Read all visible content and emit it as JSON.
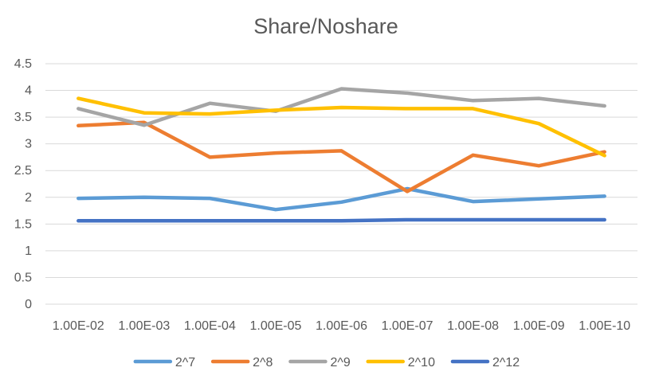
{
  "chart_data": {
    "type": "line",
    "title": "Share/Noshare",
    "xlabel": "",
    "ylabel": "",
    "categories": [
      "1.00E-02",
      "1.00E-03",
      "1.00E-04",
      "1.00E-05",
      "1.00E-06",
      "1.00E-07",
      "1.00E-08",
      "1.00E-09",
      "1.00E-10"
    ],
    "ylim": [
      0,
      4.5
    ],
    "yticks": [
      "0",
      "0.5",
      "1",
      "1.5",
      "2",
      "2.5",
      "3",
      "3.5",
      "4",
      "4.5"
    ],
    "grid": true,
    "legend_position": "bottom",
    "series": [
      {
        "name": "2^7",
        "color": "#5b9bd5",
        "values": [
          1.98,
          2.0,
          1.98,
          1.77,
          1.91,
          2.16,
          1.92,
          1.97,
          2.02
        ]
      },
      {
        "name": "2^8",
        "color": "#ed7d31",
        "values": [
          3.34,
          3.4,
          2.75,
          2.83,
          2.87,
          2.11,
          2.79,
          2.59,
          2.85
        ]
      },
      {
        "name": "2^9",
        "color": "#a5a5a5",
        "values": [
          3.66,
          3.35,
          3.76,
          3.61,
          4.03,
          3.95,
          3.81,
          3.85,
          3.71
        ]
      },
      {
        "name": "2^10",
        "color": "#ffc000",
        "values": [
          3.85,
          3.58,
          3.56,
          3.63,
          3.68,
          3.66,
          3.66,
          3.38,
          2.78
        ]
      },
      {
        "name": "2^12",
        "color": "#4472c4",
        "values": [
          1.56,
          1.56,
          1.56,
          1.56,
          1.56,
          1.58,
          1.58,
          1.58,
          1.58
        ]
      }
    ]
  }
}
